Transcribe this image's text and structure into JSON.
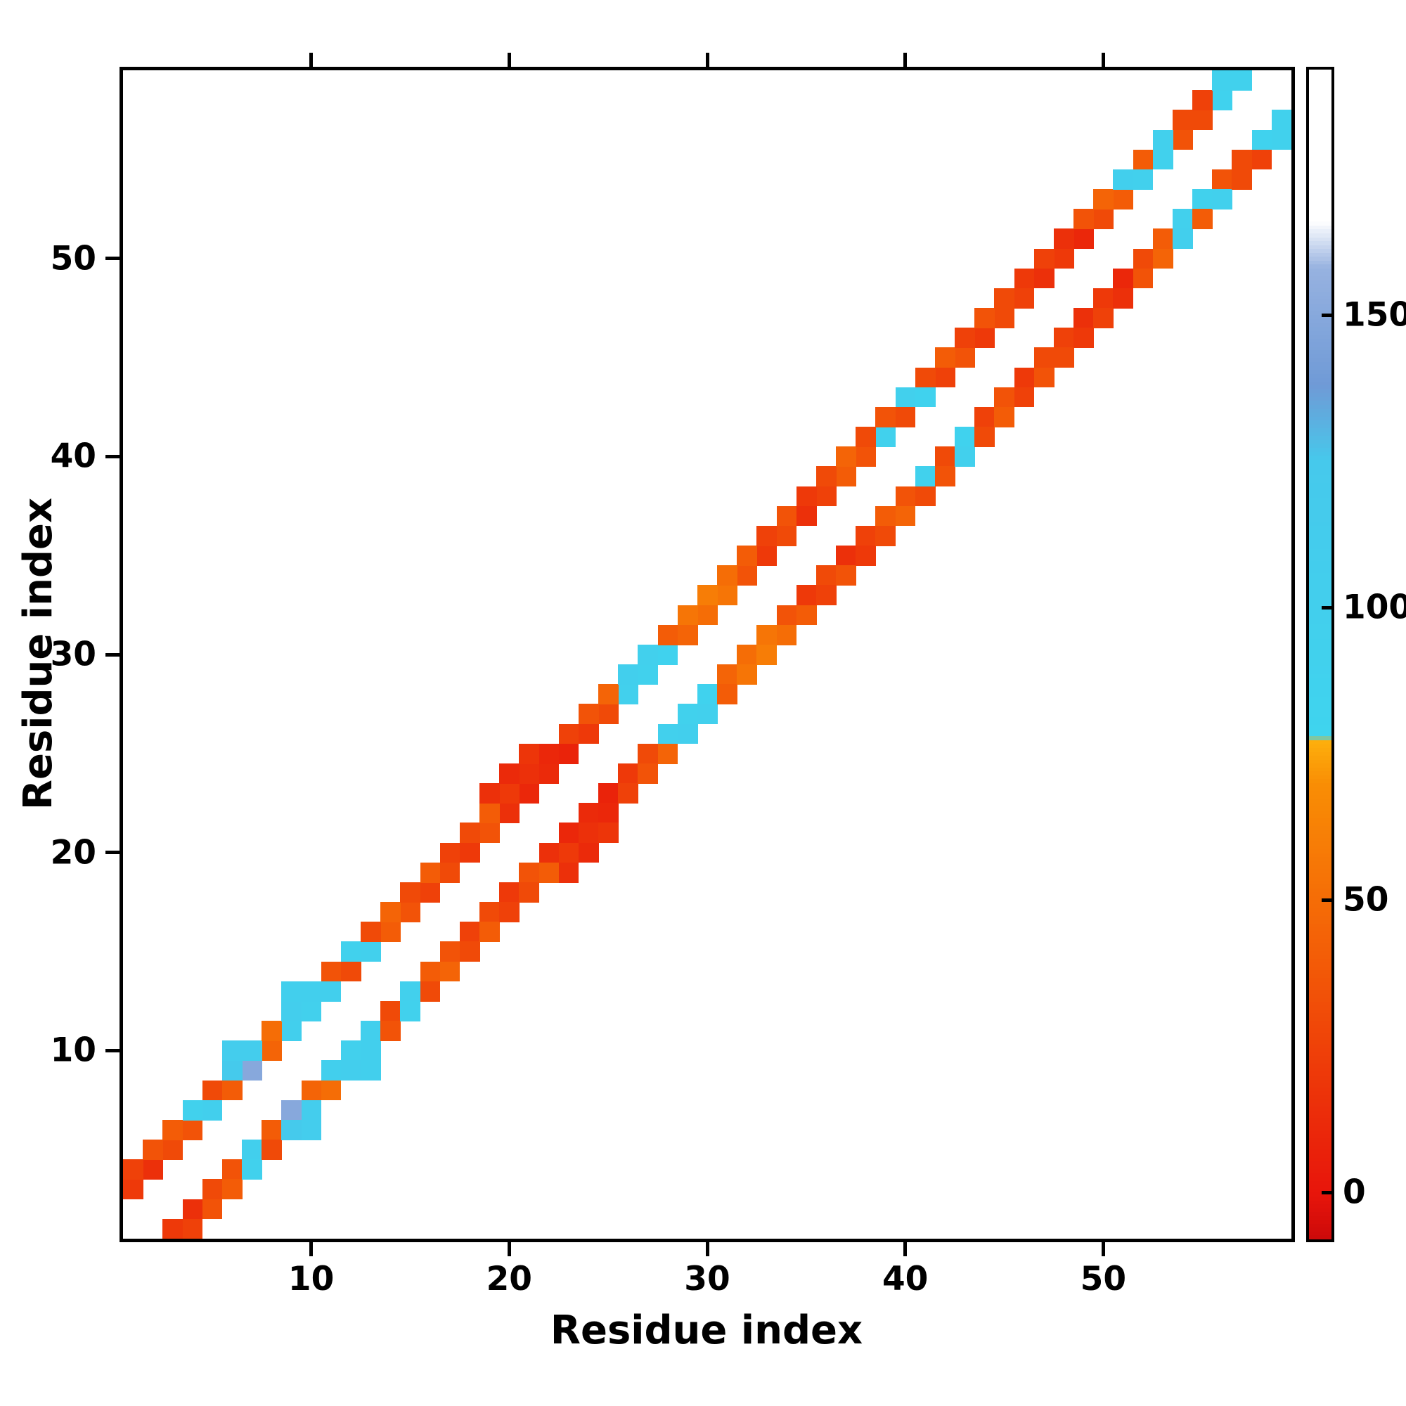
{
  "page": {
    "background": "#ffffff"
  },
  "chart_data": {
    "type": "heatmap",
    "title": "",
    "xlabel": "Residue index",
    "ylabel": "Residue index",
    "n_residues": 59,
    "axis_domain": [
      0.5,
      59.5
    ],
    "x_ticks": [
      "10",
      "20",
      "30",
      "40",
      "50"
    ],
    "y_ticks": [
      "10",
      "20",
      "30",
      "40",
      "50"
    ],
    "grid": false,
    "matrix_symmetric": true,
    "diagonal_empty": true,
    "colorbar": {
      "vmin": -8,
      "vmax": 192,
      "ticks": [
        "0",
        "50",
        "100",
        "150"
      ],
      "tick_values": [
        0,
        50,
        100,
        150
      ]
    },
    "colormap_stops": [
      {
        "v": -8,
        "color": "#cc0a0a"
      },
      {
        "v": 0,
        "color": "#e8150b"
      },
      {
        "v": 40,
        "color": "#f35c07"
      },
      {
        "v": 70,
        "color": "#f98e05"
      },
      {
        "v": 77,
        "color": "#fdae0c"
      },
      {
        "v": 78,
        "color": "#3fd4ee"
      },
      {
        "v": 125,
        "color": "#46c9ec"
      },
      {
        "v": 138,
        "color": "#6f9ad6"
      },
      {
        "v": 158,
        "color": "#97b2e0"
      },
      {
        "v": 166,
        "color": "#ffffff"
      },
      {
        "v": 192,
        "color": "#ffffff"
      }
    ],
    "contacts": [
      [
        1,
        3,
        20
      ],
      [
        2,
        4,
        15
      ],
      [
        3,
        5,
        30
      ],
      [
        4,
        6,
        35
      ],
      [
        5,
        7,
        100
      ],
      [
        6,
        8,
        40
      ],
      [
        7,
        9,
        150
      ],
      [
        8,
        10,
        45
      ],
      [
        9,
        11,
        100
      ],
      [
        10,
        12,
        95
      ],
      [
        11,
        13,
        100
      ],
      [
        12,
        14,
        30
      ],
      [
        13,
        15,
        95
      ],
      [
        14,
        16,
        40
      ],
      [
        15,
        17,
        35
      ],
      [
        16,
        18,
        25
      ],
      [
        17,
        19,
        30
      ],
      [
        18,
        20,
        20
      ],
      [
        19,
        21,
        35
      ],
      [
        20,
        22,
        15
      ],
      [
        21,
        23,
        10
      ],
      [
        22,
        24,
        12
      ],
      [
        23,
        25,
        8
      ],
      [
        24,
        26,
        20
      ],
      [
        25,
        27,
        30
      ],
      [
        26,
        28,
        95
      ],
      [
        27,
        29,
        90
      ],
      [
        28,
        30,
        85
      ],
      [
        29,
        31,
        45
      ],
      [
        30,
        32,
        50
      ],
      [
        31,
        33,
        55
      ],
      [
        32,
        34,
        35
      ],
      [
        33,
        35,
        20
      ],
      [
        34,
        36,
        30
      ],
      [
        35,
        37,
        15
      ],
      [
        36,
        38,
        25
      ],
      [
        37,
        39,
        40
      ],
      [
        38,
        40,
        35
      ],
      [
        39,
        41,
        90
      ],
      [
        40,
        42,
        30
      ],
      [
        41,
        43,
        85
      ],
      [
        42,
        44,
        25
      ],
      [
        43,
        45,
        35
      ],
      [
        44,
        46,
        20
      ],
      [
        45,
        47,
        30
      ],
      [
        46,
        48,
        25
      ],
      [
        47,
        49,
        15
      ],
      [
        48,
        50,
        20
      ],
      [
        49,
        51,
        10
      ],
      [
        50,
        52,
        30
      ],
      [
        51,
        53,
        40
      ],
      [
        52,
        54,
        95
      ],
      [
        53,
        55,
        90
      ],
      [
        54,
        56,
        35
      ],
      [
        55,
        57,
        30
      ],
      [
        56,
        58,
        85
      ],
      [
        57,
        59,
        90
      ],
      [
        1,
        4,
        25
      ],
      [
        2,
        5,
        35
      ],
      [
        3,
        6,
        40
      ],
      [
        4,
        7,
        90
      ],
      [
        5,
        8,
        30
      ],
      [
        6,
        9,
        120
      ],
      [
        7,
        10,
        110
      ],
      [
        8,
        11,
        50
      ],
      [
        9,
        12,
        105
      ],
      [
        10,
        13,
        100
      ],
      [
        11,
        14,
        35
      ],
      [
        12,
        15,
        90
      ],
      [
        13,
        16,
        30
      ],
      [
        14,
        17,
        45
      ],
      [
        15,
        18,
        30
      ],
      [
        16,
        19,
        40
      ],
      [
        17,
        20,
        25
      ],
      [
        18,
        21,
        30
      ],
      [
        19,
        22,
        40
      ],
      [
        20,
        23,
        20
      ],
      [
        21,
        24,
        15
      ],
      [
        22,
        25,
        10
      ],
      [
        23,
        26,
        25
      ],
      [
        24,
        27,
        35
      ],
      [
        25,
        28,
        45
      ],
      [
        26,
        29,
        100
      ],
      [
        27,
        30,
        95
      ],
      [
        28,
        31,
        40
      ],
      [
        29,
        32,
        55
      ],
      [
        30,
        33,
        60
      ],
      [
        31,
        34,
        50
      ],
      [
        32,
        35,
        40
      ],
      [
        33,
        36,
        25
      ],
      [
        34,
        37,
        35
      ],
      [
        35,
        38,
        20
      ],
      [
        36,
        39,
        30
      ],
      [
        37,
        40,
        45
      ],
      [
        38,
        41,
        30
      ],
      [
        39,
        42,
        35
      ],
      [
        40,
        43,
        95
      ],
      [
        41,
        44,
        30
      ],
      [
        42,
        45,
        40
      ],
      [
        43,
        46,
        25
      ],
      [
        44,
        47,
        35
      ],
      [
        45,
        48,
        30
      ],
      [
        46,
        49,
        20
      ],
      [
        47,
        50,
        25
      ],
      [
        48,
        51,
        15
      ],
      [
        49,
        52,
        35
      ],
      [
        50,
        53,
        45
      ],
      [
        51,
        54,
        100
      ],
      [
        52,
        55,
        40
      ],
      [
        53,
        56,
        95
      ],
      [
        54,
        57,
        30
      ],
      [
        55,
        58,
        25
      ],
      [
        56,
        59,
        90
      ],
      [
        6,
        10,
        110
      ],
      [
        9,
        13,
        100
      ],
      [
        19,
        23,
        15
      ],
      [
        20,
        24,
        12
      ],
      [
        21,
        25,
        18
      ]
    ]
  }
}
